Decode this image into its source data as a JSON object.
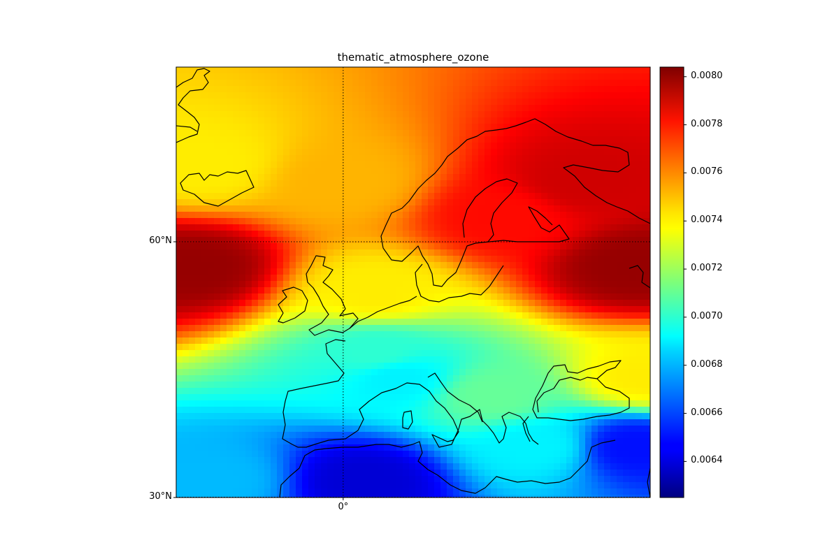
{
  "title": "thematic_atmosphere_ozone",
  "map": {
    "lat_range": [
      30,
      70
    ],
    "lon_range": [
      -15.5,
      28.5
    ],
    "gridlines": {
      "parallels": [
        {
          "value": 60,
          "label": "60°N"
        }
      ],
      "meridians": [
        {
          "value": 0,
          "label": "0°"
        }
      ],
      "bottom_label": "30°N",
      "style": "dotted"
    },
    "coastlines": true,
    "colormap": "jet"
  },
  "colorbar": {
    "min": 0.00625,
    "max": 0.00804,
    "ticks": [
      {
        "value": 0.0064,
        "label": "0.0064"
      },
      {
        "value": 0.0066,
        "label": "0.0066"
      },
      {
        "value": 0.0068,
        "label": "0.0068"
      },
      {
        "value": 0.007,
        "label": "0.0070"
      },
      {
        "value": 0.0072,
        "label": "0.0072"
      },
      {
        "value": 0.0074,
        "label": "0.0074"
      },
      {
        "value": 0.0076,
        "label": "0.0076"
      },
      {
        "value": 0.0078,
        "label": "0.0078"
      },
      {
        "value": 0.008,
        "label": "0.0080"
      }
    ]
  },
  "field": {
    "description_points": [
      {
        "lon": -14,
        "lat": 57,
        "value": 0.008
      },
      {
        "lon": 27,
        "lat": 57,
        "value": 0.008
      },
      {
        "lon": 22,
        "lat": 67,
        "value": 0.0079
      },
      {
        "lon": 15,
        "lat": 63,
        "value": 0.0078
      },
      {
        "lon": -13,
        "lat": 69,
        "value": 0.0074
      },
      {
        "lon": 0,
        "lat": 67,
        "value": 0.0075
      },
      {
        "lon": 3,
        "lat": 54,
        "value": 0.0074
      },
      {
        "lon": 3,
        "lat": 47,
        "value": 0.007
      },
      {
        "lon": 5,
        "lat": 44,
        "value": 0.0069
      },
      {
        "lon": 14,
        "lat": 42,
        "value": 0.0071
      },
      {
        "lon": 18,
        "lat": 36,
        "value": 0.0069
      },
      {
        "lon": 27,
        "lat": 36,
        "value": 0.0065
      },
      {
        "lon": 2,
        "lat": 32,
        "value": 0.0064
      },
      {
        "lon": -12,
        "lat": 32,
        "value": 0.0068
      },
      {
        "lon": 28,
        "lat": 44,
        "value": 0.0074
      }
    ]
  }
}
